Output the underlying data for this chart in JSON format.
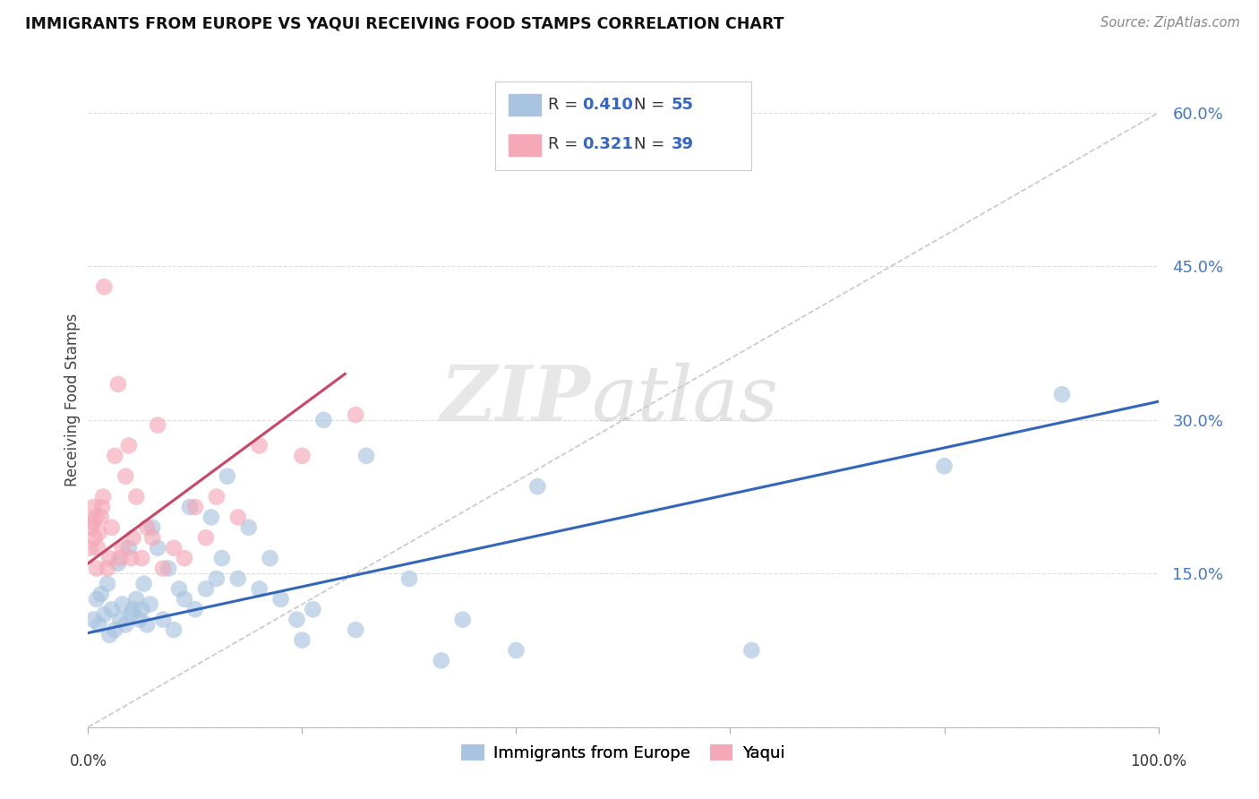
{
  "title": "IMMIGRANTS FROM EUROPE VS YAQUI RECEIVING FOOD STAMPS CORRELATION CHART",
  "source": "Source: ZipAtlas.com",
  "ylabel": "Receiving Food Stamps",
  "yticks": [
    0.0,
    0.15,
    0.3,
    0.45,
    0.6
  ],
  "ytick_labels": [
    "",
    "15.0%",
    "30.0%",
    "45.0%",
    "60.0%"
  ],
  "xlim": [
    0.0,
    1.0
  ],
  "ylim": [
    0.0,
    0.64
  ],
  "blue_R": "0.410",
  "blue_N": "55",
  "pink_R": "0.321",
  "pink_N": "39",
  "blue_color": "#A8C4E0",
  "pink_color": "#F4A8B8",
  "blue_line_color": "#3366BB",
  "pink_line_color": "#CC4466",
  "legend_blue_label": "Immigrants from Europe",
  "legend_pink_label": "Yaqui",
  "watermark_zip": "ZIP",
  "watermark_atlas": "atlas",
  "blue_scatter_x": [
    0.005,
    0.008,
    0.01,
    0.012,
    0.015,
    0.018,
    0.02,
    0.022,
    0.025,
    0.028,
    0.03,
    0.032,
    0.035,
    0.038,
    0.04,
    0.042,
    0.045,
    0.048,
    0.05,
    0.052,
    0.055,
    0.058,
    0.06,
    0.065,
    0.07,
    0.075,
    0.08,
    0.085,
    0.09,
    0.095,
    0.1,
    0.11,
    0.115,
    0.12,
    0.125,
    0.13,
    0.14,
    0.15,
    0.16,
    0.17,
    0.18,
    0.195,
    0.2,
    0.21,
    0.22,
    0.25,
    0.26,
    0.3,
    0.33,
    0.35,
    0.4,
    0.42,
    0.62,
    0.8,
    0.91
  ],
  "blue_scatter_y": [
    0.105,
    0.125,
    0.1,
    0.13,
    0.11,
    0.14,
    0.09,
    0.115,
    0.095,
    0.16,
    0.105,
    0.12,
    0.1,
    0.175,
    0.11,
    0.115,
    0.125,
    0.105,
    0.115,
    0.14,
    0.1,
    0.12,
    0.195,
    0.175,
    0.105,
    0.155,
    0.095,
    0.135,
    0.125,
    0.215,
    0.115,
    0.135,
    0.205,
    0.145,
    0.165,
    0.245,
    0.145,
    0.195,
    0.135,
    0.165,
    0.125,
    0.105,
    0.085,
    0.115,
    0.3,
    0.095,
    0.265,
    0.145,
    0.065,
    0.105,
    0.075,
    0.235,
    0.075,
    0.255,
    0.325
  ],
  "pink_scatter_x": [
    0.002,
    0.003,
    0.004,
    0.005,
    0.006,
    0.007,
    0.008,
    0.009,
    0.01,
    0.012,
    0.013,
    0.014,
    0.015,
    0.018,
    0.02,
    0.022,
    0.025,
    0.028,
    0.03,
    0.032,
    0.035,
    0.038,
    0.04,
    0.042,
    0.045,
    0.05,
    0.055,
    0.06,
    0.065,
    0.07,
    0.08,
    0.09,
    0.1,
    0.11,
    0.12,
    0.14,
    0.16,
    0.2,
    0.25
  ],
  "pink_scatter_y": [
    0.175,
    0.195,
    0.2,
    0.215,
    0.185,
    0.205,
    0.155,
    0.175,
    0.19,
    0.205,
    0.215,
    0.225,
    0.43,
    0.155,
    0.165,
    0.195,
    0.265,
    0.335,
    0.165,
    0.175,
    0.245,
    0.275,
    0.165,
    0.185,
    0.225,
    0.165,
    0.195,
    0.185,
    0.295,
    0.155,
    0.175,
    0.165,
    0.215,
    0.185,
    0.225,
    0.205,
    0.275,
    0.265,
    0.305
  ],
  "blue_line_x0": 0.0,
  "blue_line_y0": 0.092,
  "blue_line_x1": 1.0,
  "blue_line_y1": 0.318,
  "pink_line_x0": 0.0,
  "pink_line_y0": 0.16,
  "pink_line_x1": 0.24,
  "pink_line_y1": 0.345,
  "diag_line_x": [
    0.0,
    1.0
  ],
  "diag_line_y": [
    0.0,
    0.6
  ]
}
